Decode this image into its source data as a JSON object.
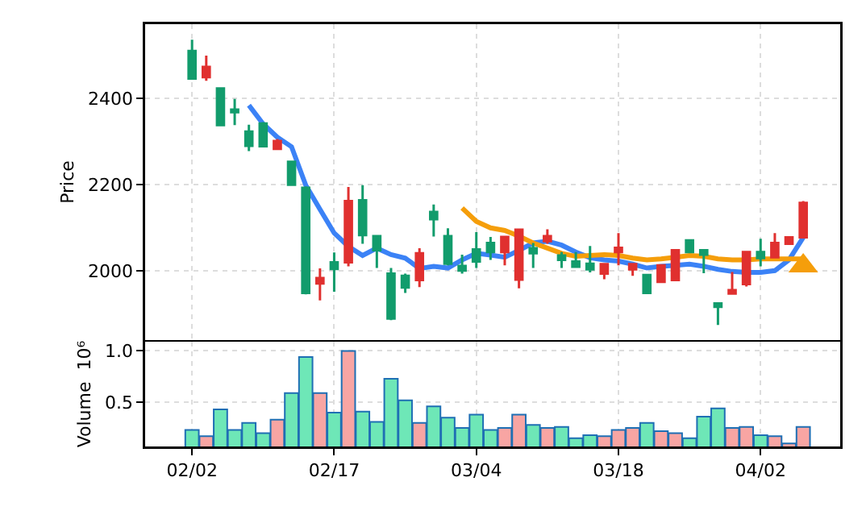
{
  "chart_data": [
    {
      "type": "candlestick",
      "ylabel": "Price",
      "categories": [
        null,
        null,
        null,
        null,
        null,
        null,
        null,
        null,
        null,
        null,
        null,
        null,
        null,
        null,
        null,
        null,
        null,
        null,
        null,
        null,
        null,
        null,
        null,
        null,
        null,
        null,
        null,
        null,
        null,
        null,
        null,
        null,
        null,
        null,
        null,
        null,
        null,
        null,
        null,
        null,
        null,
        null,
        null,
        null
      ],
      "ohlc": [
        [
          2446,
          2536,
          2446,
          2510
        ],
        [
          2473,
          2499,
          2441,
          2449
        ],
        [
          2338,
          2425,
          2336,
          2423
        ],
        [
          2368,
          2399,
          2338,
          2374
        ],
        [
          2290,
          2339,
          2278,
          2323
        ],
        [
          2289,
          2345,
          2287,
          2342
        ],
        [
          2301,
          2306,
          2283,
          2283
        ],
        [
          2200,
          2254,
          2199,
          2253
        ],
        [
          1949,
          2196,
          1946,
          2193
        ],
        [
          1984,
          2006,
          1932,
          1971
        ],
        [
          2005,
          2043,
          1952,
          2020
        ],
        [
          2162,
          2195,
          2011,
          2020
        ],
        [
          2083,
          2199,
          2063,
          2164
        ],
        [
          2048,
          2082,
          2007,
          2081
        ],
        [
          1890,
          2007,
          1886,
          1994
        ],
        [
          1962,
          1994,
          1949,
          1989
        ],
        [
          2041,
          2053,
          1963,
          1979
        ],
        [
          2120,
          2154,
          2080,
          2137
        ],
        [
          2017,
          2099,
          2013,
          2081
        ],
        [
          2001,
          2038,
          1994,
          2012
        ],
        [
          2022,
          2090,
          2007,
          2050
        ],
        [
          2044,
          2079,
          2026,
          2065
        ],
        [
          2079,
          2079,
          2013,
          2044
        ],
        [
          2096,
          2096,
          1960,
          1980
        ],
        [
          2041,
          2065,
          2007,
          2053
        ],
        [
          2081,
          2097,
          2063,
          2069
        ],
        [
          2026,
          2044,
          2007,
          2036
        ],
        [
          2010,
          2044,
          2007,
          2022
        ],
        [
          2004,
          2058,
          1997,
          2017
        ],
        [
          2016,
          2016,
          1981,
          1994
        ],
        [
          2054,
          2088,
          2013,
          2044
        ],
        [
          2016,
          2016,
          1989,
          2004
        ],
        [
          1949,
          1991,
          1949,
          1991
        ],
        [
          2013,
          2013,
          1975,
          1975
        ],
        [
          2048,
          2048,
          1979,
          1979
        ],
        [
          2044,
          2071,
          2044,
          2071
        ],
        [
          2038,
          2048,
          1995,
          2048
        ],
        [
          1917,
          1925,
          1875,
          1925
        ],
        [
          1956,
          1998,
          1948,
          1948
        ],
        [
          2044,
          2044,
          1964,
          1970
        ],
        [
          2030,
          2075,
          2011,
          2044
        ],
        [
          2065,
          2088,
          2032,
          2032
        ],
        [
          2078,
          2078,
          2063,
          2063
        ],
        [
          2158,
          2162,
          2078,
          2078
        ]
      ],
      "colors": [
        "#129c6c",
        "#e0302f",
        "#129c6c",
        "#129c6c",
        "#129c6c",
        "#129c6c",
        "#e0302f",
        "#129c6c",
        "#129c6c",
        "#e0302f",
        "#129c6c",
        "#e0302f",
        "#129c6c",
        "#129c6c",
        "#129c6c",
        "#129c6c",
        "#e0302f",
        "#129c6c",
        "#129c6c",
        "#129c6c",
        "#129c6c",
        "#129c6c",
        "#e0302f",
        "#e0302f",
        "#129c6c",
        "#e0302f",
        "#129c6c",
        "#129c6c",
        "#129c6c",
        "#e0302f",
        "#e0302f",
        "#e0302f",
        "#129c6c",
        "#e0302f",
        "#e0302f",
        "#129c6c",
        "#129c6c",
        "#129c6c",
        "#e0302f",
        "#e0302f",
        "#129c6c",
        "#e0302f",
        "#e0302f",
        "#e0302f"
      ],
      "series": [
        {
          "type": "line",
          "color": "#3b82f6",
          "values": [
            null,
            null,
            null,
            null,
            2384,
            2341,
            2310,
            2288,
            2199,
            2143,
            2088,
            2057,
            2036,
            2053,
            2038,
            2030,
            2006,
            2011,
            2007,
            2026,
            2041,
            2037,
            2032,
            2048,
            2065,
            2069,
            2060,
            2044,
            2031,
            2026,
            2023,
            2016,
            2007,
            2011,
            2013,
            2016,
            2011,
            2004,
            1999,
            1997,
            1997,
            2001,
            2026,
            2078
          ]
        },
        {
          "type": "line",
          "color": "#f59e0b",
          "values": [
            null,
            null,
            null,
            null,
            null,
            null,
            null,
            null,
            null,
            null,
            null,
            null,
            null,
            null,
            null,
            null,
            null,
            null,
            null,
            2146,
            2115,
            2100,
            2094,
            2081,
            2065,
            2053,
            2041,
            2034,
            2036,
            2038,
            2036,
            2030,
            2026,
            2028,
            2032,
            2036,
            2034,
            2028,
            2026,
            2026,
            2028,
            2028,
            2028,
            2028
          ]
        },
        {
          "type": "scatter",
          "marker": "triangle",
          "color": "#f59e0b",
          "values": [
            null,
            null,
            null,
            null,
            null,
            null,
            null,
            null,
            null,
            null,
            null,
            null,
            null,
            null,
            null,
            null,
            null,
            null,
            null,
            null,
            null,
            null,
            null,
            null,
            null,
            null,
            null,
            null,
            null,
            null,
            null,
            null,
            null,
            null,
            null,
            null,
            null,
            null,
            null,
            null,
            null,
            null,
            null,
            2012
          ]
        }
      ],
      "ylim": [
        1840,
        2572
      ],
      "yticks": [
        2000,
        2200,
        2400
      ],
      "tick_labels": "y",
      "grid": true,
      "line_style": "solid"
    },
    {
      "type": "bar",
      "ylabel": "Volume  10⁶",
      "categories": [
        "02/02",
        null,
        null,
        null,
        null,
        null,
        null,
        null,
        null,
        null,
        "02/17",
        null,
        null,
        null,
        null,
        null,
        null,
        null,
        null,
        null,
        "03/04",
        null,
        null,
        null,
        null,
        null,
        null,
        null,
        null,
        null,
        "03/18",
        null,
        null,
        null,
        null,
        null,
        null,
        null,
        null,
        null,
        "04/02",
        null,
        null,
        null
      ],
      "values": [
        0.23,
        0.17,
        0.43,
        0.23,
        0.3,
        0.2,
        0.33,
        0.59,
        0.94,
        0.59,
        0.4,
        1.0,
        0.41,
        0.31,
        0.73,
        0.52,
        0.3,
        0.46,
        0.35,
        0.25,
        0.38,
        0.23,
        0.25,
        0.38,
        0.28,
        0.25,
        0.26,
        0.15,
        0.18,
        0.17,
        0.23,
        0.25,
        0.3,
        0.22,
        0.2,
        0.15,
        0.36,
        0.44,
        0.25,
        0.26,
        0.18,
        0.17,
        0.1,
        0.26
      ],
      "colors": [
        "#6ee7b7",
        "#f8a5a3",
        "#6ee7b7",
        "#6ee7b7",
        "#6ee7b7",
        "#6ee7b7",
        "#f8a5a3",
        "#6ee7b7",
        "#6ee7b7",
        "#f8a5a3",
        "#6ee7b7",
        "#f8a5a3",
        "#6ee7b7",
        "#6ee7b7",
        "#6ee7b7",
        "#6ee7b7",
        "#f8a5a3",
        "#6ee7b7",
        "#6ee7b7",
        "#6ee7b7",
        "#6ee7b7",
        "#6ee7b7",
        "#f8a5a3",
        "#f8a5a3",
        "#6ee7b7",
        "#f8a5a3",
        "#6ee7b7",
        "#6ee7b7",
        "#6ee7b7",
        "#f8a5a3",
        "#f8a5a3",
        "#f8a5a3",
        "#6ee7b7",
        "#f8a5a3",
        "#f8a5a3",
        "#6ee7b7",
        "#6ee7b7",
        "#6ee7b7",
        "#f8a5a3",
        "#f8a5a3",
        "#6ee7b7",
        "#f8a5a3",
        "#f8a5a3",
        "#f8a5a3"
      ],
      "ylim": [
        0.07,
        1.09
      ],
      "yticks": [
        0.5,
        {
          "value": 1,
          "label": "1.0"
        }
      ],
      "grid": true
    }
  ]
}
